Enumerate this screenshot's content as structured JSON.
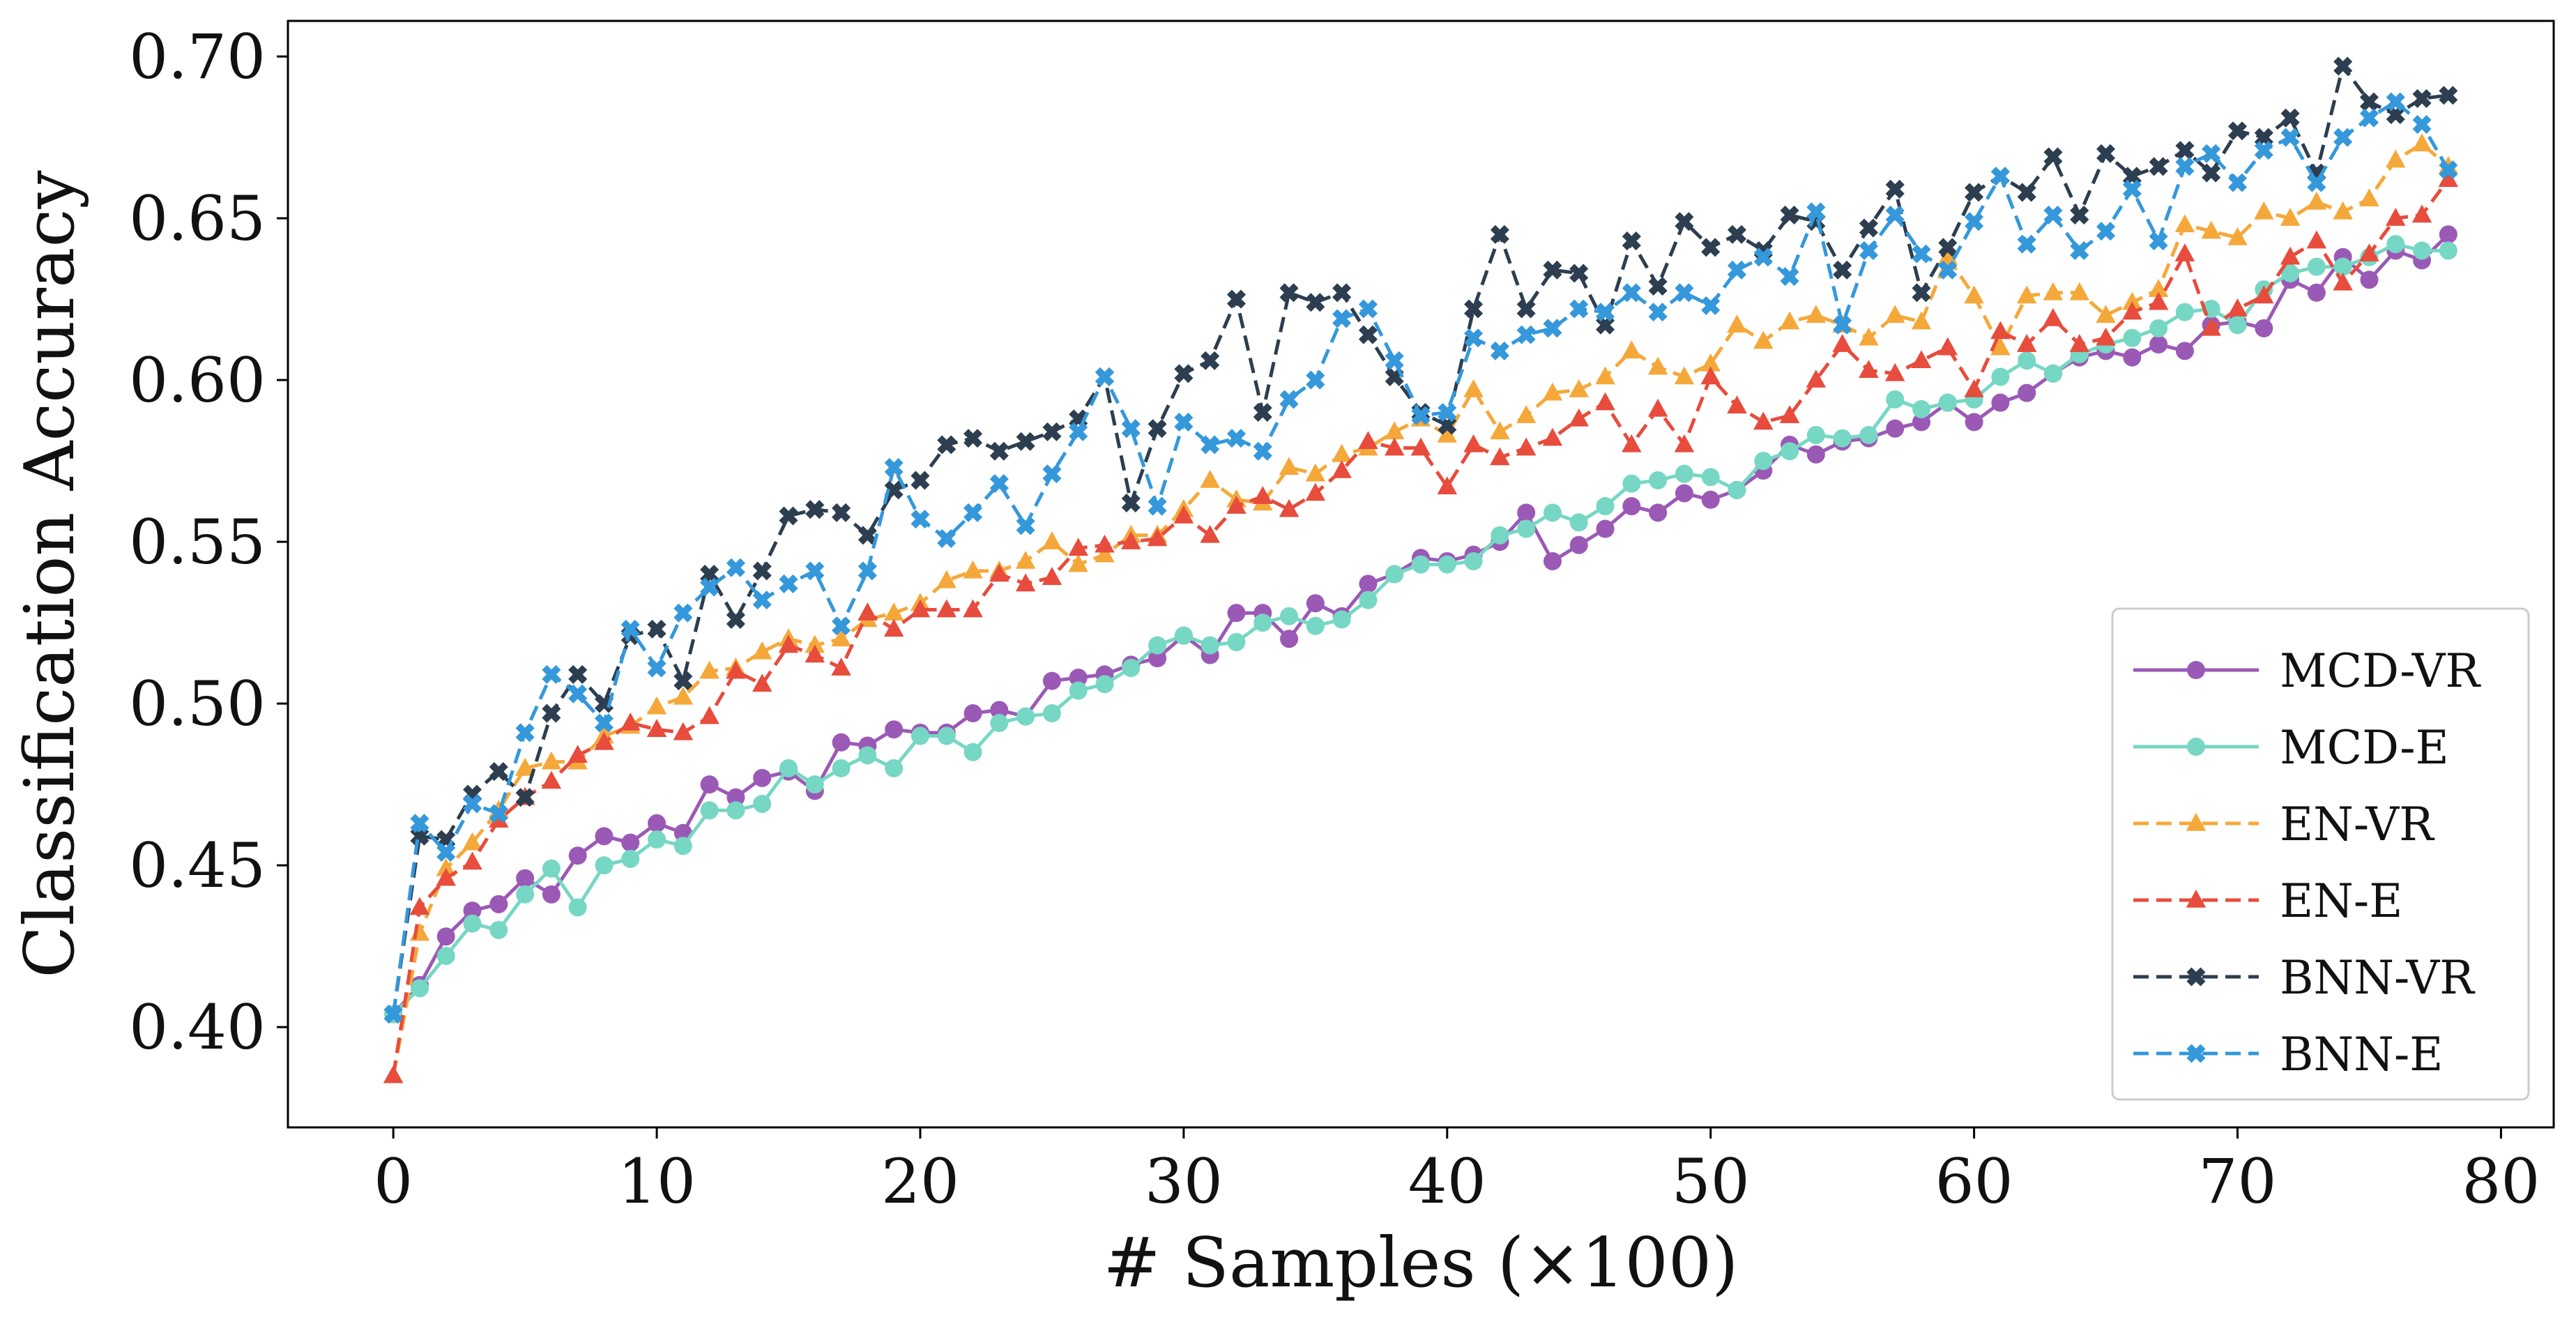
{
  "chart_data": {
    "type": "line",
    "title": "",
    "xlabel": "# Samples (×100)",
    "ylabel": "Classification Accuracy",
    "xlim": [
      -4,
      82
    ],
    "ylim": [
      0.369,
      0.711
    ],
    "xticks": [
      0,
      10,
      20,
      30,
      40,
      50,
      60,
      70,
      80
    ],
    "xtick_labels": [
      "0",
      "10",
      "20",
      "30",
      "40",
      "50",
      "60",
      "70",
      "80"
    ],
    "yticks": [
      0.4,
      0.45,
      0.5,
      0.55,
      0.6,
      0.65,
      0.7
    ],
    "ytick_labels": [
      "0.40",
      "0.45",
      "0.50",
      "0.55",
      "0.60",
      "0.65",
      "0.70"
    ],
    "grid": false,
    "legend_position": "lower right",
    "x": [
      0,
      1,
      2,
      3,
      4,
      5,
      6,
      7,
      8,
      9,
      10,
      11,
      12,
      13,
      14,
      15,
      16,
      17,
      18,
      19,
      20,
      21,
      22,
      23,
      24,
      25,
      26,
      27,
      28,
      29,
      30,
      31,
      32,
      33,
      34,
      35,
      36,
      37,
      38,
      39,
      40,
      41,
      42,
      43,
      44,
      45,
      46,
      47,
      48,
      49,
      50,
      51,
      52,
      53,
      54,
      55,
      56,
      57,
      58,
      59,
      60,
      61,
      62,
      63,
      64,
      65,
      66,
      67,
      68,
      69,
      70,
      71,
      72,
      73,
      74,
      75,
      76,
      77,
      78
    ],
    "series": [
      {
        "name": "MCD-VR",
        "color": "#9b59b6",
        "dashed": false,
        "marker": "circle",
        "values": [
          0.404,
          0.413,
          0.428,
          0.436,
          0.438,
          0.446,
          0.441,
          0.453,
          0.459,
          0.457,
          0.463,
          0.46,
          0.475,
          0.471,
          0.477,
          0.479,
          0.473,
          0.488,
          0.487,
          0.492,
          0.491,
          0.491,
          0.497,
          0.498,
          0.496,
          0.507,
          0.508,
          0.509,
          0.512,
          0.514,
          0.521,
          0.515,
          0.528,
          0.528,
          0.52,
          0.531,
          0.527,
          0.537,
          0.54,
          0.545,
          0.544,
          0.546,
          0.55,
          0.559,
          0.544,
          0.549,
          0.554,
          0.561,
          0.559,
          0.565,
          0.563,
          0.566,
          0.572,
          0.58,
          0.577,
          0.581,
          0.582,
          0.585,
          0.587,
          0.593,
          0.587,
          0.593,
          0.596,
          0.602,
          0.607,
          0.609,
          0.607,
          0.611,
          0.609,
          0.617,
          0.618,
          0.616,
          0.631,
          0.627,
          0.638,
          0.631,
          0.64,
          0.637,
          0.645
        ]
      },
      {
        "name": "MCD-E",
        "color": "#76d7c4",
        "dashed": false,
        "marker": "circle",
        "values": [
          0.404,
          0.412,
          0.422,
          0.432,
          0.43,
          0.441,
          0.449,
          0.437,
          0.45,
          0.452,
          0.458,
          0.456,
          0.467,
          0.467,
          0.469,
          0.48,
          0.475,
          0.48,
          0.484,
          0.48,
          0.49,
          0.49,
          0.485,
          0.494,
          0.496,
          0.497,
          0.504,
          0.506,
          0.511,
          0.518,
          0.521,
          0.518,
          0.519,
          0.525,
          0.527,
          0.524,
          0.526,
          0.532,
          0.54,
          0.543,
          0.543,
          0.544,
          0.552,
          0.554,
          0.559,
          0.556,
          0.561,
          0.568,
          0.569,
          0.571,
          0.57,
          0.566,
          0.575,
          0.578,
          0.583,
          0.582,
          0.583,
          0.594,
          0.591,
          0.593,
          0.594,
          0.601,
          0.606,
          0.602,
          0.608,
          0.611,
          0.613,
          0.616,
          0.621,
          0.622,
          0.617,
          0.628,
          0.633,
          0.635,
          0.635,
          0.638,
          0.642,
          0.64,
          0.64
        ]
      },
      {
        "name": "EN-VR",
        "color": "#f5a83a",
        "dashed": true,
        "marker": "triangle",
        "values": [
          0.385,
          0.429,
          0.449,
          0.457,
          0.467,
          0.48,
          0.482,
          0.482,
          0.49,
          0.493,
          0.499,
          0.502,
          0.51,
          0.511,
          0.516,
          0.52,
          0.518,
          0.52,
          0.526,
          0.528,
          0.531,
          0.538,
          0.541,
          0.541,
          0.544,
          0.55,
          0.543,
          0.546,
          0.552,
          0.552,
          0.56,
          0.569,
          0.563,
          0.562,
          0.573,
          0.571,
          0.577,
          0.579,
          0.584,
          0.588,
          0.583,
          0.597,
          0.584,
          0.589,
          0.596,
          0.597,
          0.601,
          0.609,
          0.604,
          0.601,
          0.605,
          0.617,
          0.612,
          0.618,
          0.62,
          0.617,
          0.613,
          0.62,
          0.618,
          0.638,
          0.626,
          0.61,
          0.626,
          0.627,
          0.627,
          0.62,
          0.624,
          0.628,
          0.648,
          0.646,
          0.644,
          0.652,
          0.65,
          0.655,
          0.652,
          0.656,
          0.668,
          0.673,
          0.666
        ]
      },
      {
        "name": "EN-E",
        "color": "#e74c3c",
        "dashed": true,
        "marker": "triangle",
        "values": [
          0.385,
          0.437,
          0.446,
          0.451,
          0.464,
          0.471,
          0.476,
          0.484,
          0.488,
          0.494,
          0.492,
          0.491,
          0.496,
          0.51,
          0.506,
          0.518,
          0.515,
          0.511,
          0.528,
          0.523,
          0.529,
          0.529,
          0.529,
          0.54,
          0.537,
          0.539,
          0.548,
          0.549,
          0.55,
          0.551,
          0.558,
          0.552,
          0.561,
          0.564,
          0.56,
          0.565,
          0.572,
          0.581,
          0.579,
          0.579,
          0.567,
          0.58,
          0.576,
          0.579,
          0.582,
          0.588,
          0.593,
          0.58,
          0.591,
          0.58,
          0.601,
          0.592,
          0.587,
          0.589,
          0.6,
          0.611,
          0.603,
          0.602,
          0.606,
          0.61,
          0.597,
          0.615,
          0.611,
          0.619,
          0.611,
          0.613,
          0.621,
          0.624,
          0.639,
          0.616,
          0.622,
          0.626,
          0.638,
          0.643,
          0.63,
          0.639,
          0.65,
          0.651,
          0.662
        ]
      },
      {
        "name": "BNN-VR",
        "color": "#2c3e50",
        "dashed": true,
        "marker": "x",
        "values": [
          0.404,
          0.459,
          0.458,
          0.472,
          0.479,
          0.471,
          0.497,
          0.509,
          0.5,
          0.521,
          0.523,
          0.507,
          0.54,
          0.526,
          0.541,
          0.558,
          0.56,
          0.559,
          0.552,
          0.566,
          0.569,
          0.58,
          0.582,
          0.578,
          0.581,
          0.584,
          0.588,
          0.601,
          0.562,
          0.585,
          0.602,
          0.606,
          0.625,
          0.59,
          0.627,
          0.624,
          0.627,
          0.614,
          0.601,
          0.59,
          0.586,
          0.622,
          0.645,
          0.622,
          0.634,
          0.633,
          0.617,
          0.643,
          0.629,
          0.649,
          0.641,
          0.645,
          0.64,
          0.651,
          0.649,
          0.634,
          0.647,
          0.659,
          0.627,
          0.641,
          0.658,
          0.663,
          0.658,
          0.669,
          0.651,
          0.67,
          0.663,
          0.666,
          0.671,
          0.664,
          0.677,
          0.675,
          0.681,
          0.664,
          0.697,
          0.686,
          0.682,
          0.687,
          0.688
        ]
      },
      {
        "name": "BNN-E",
        "color": "#3498db",
        "dashed": true,
        "marker": "x",
        "values": [
          0.404,
          0.463,
          0.454,
          0.469,
          0.466,
          0.491,
          0.509,
          0.503,
          0.494,
          0.523,
          0.511,
          0.528,
          0.536,
          0.542,
          0.532,
          0.537,
          0.541,
          0.524,
          0.541,
          0.573,
          0.557,
          0.551,
          0.559,
          0.568,
          0.555,
          0.571,
          0.584,
          0.601,
          0.585,
          0.561,
          0.587,
          0.58,
          0.582,
          0.578,
          0.594,
          0.6,
          0.619,
          0.622,
          0.606,
          0.589,
          0.59,
          0.613,
          0.609,
          0.614,
          0.616,
          0.622,
          0.621,
          0.627,
          0.621,
          0.627,
          0.623,
          0.634,
          0.638,
          0.632,
          0.652,
          0.617,
          0.64,
          0.651,
          0.639,
          0.634,
          0.649,
          0.663,
          0.642,
          0.651,
          0.64,
          0.646,
          0.659,
          0.643,
          0.666,
          0.67,
          0.661,
          0.671,
          0.675,
          0.661,
          0.675,
          0.681,
          0.686,
          0.679,
          0.665
        ]
      }
    ]
  }
}
